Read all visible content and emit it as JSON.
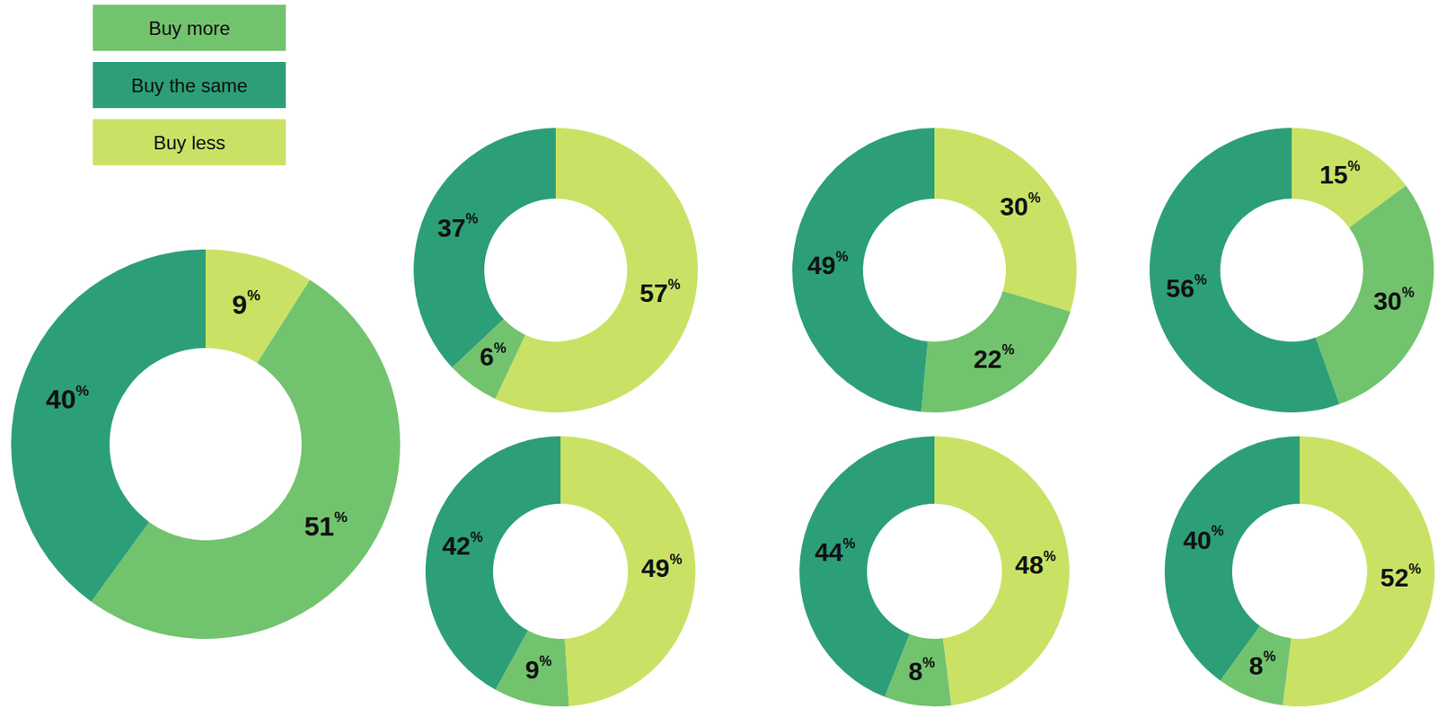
{
  "chart_data": [
    {
      "type": "pie",
      "categories": [
        "Buy less",
        "Buy more",
        "Buy the same"
      ],
      "values": [
        9,
        51,
        40
      ],
      "value_labels": [
        "9%",
        "51%",
        "40%"
      ],
      "colors": [
        "#c9e265",
        "#72c36e",
        "#2c9f78"
      ],
      "data_labels": true,
      "legend": "top-left"
    },
    {
      "type": "pie",
      "categories": [
        "Buy less",
        "Buy more",
        "Buy the same"
      ],
      "values": [
        57,
        6,
        37
      ],
      "value_labels": [
        "57%",
        "6%",
        "37%"
      ],
      "colors": [
        "#c9e265",
        "#72c36e",
        "#2c9f78"
      ],
      "data_labels": true
    },
    {
      "type": "pie",
      "categories": [
        "Buy less",
        "Buy more",
        "Buy the same"
      ],
      "values": [
        30,
        22,
        49
      ],
      "value_labels": [
        "30%",
        "22%",
        "49%"
      ],
      "colors": [
        "#c9e265",
        "#72c36e",
        "#2c9f78"
      ],
      "data_labels": true
    },
    {
      "type": "pie",
      "categories": [
        "Buy less",
        "Buy more",
        "Buy the same"
      ],
      "values": [
        15,
        30,
        56
      ],
      "value_labels": [
        "15%",
        "30%",
        "56%"
      ],
      "colors": [
        "#c9e265",
        "#72c36e",
        "#2c9f78"
      ],
      "data_labels": true
    },
    {
      "type": "pie",
      "categories": [
        "Buy less",
        "Buy more",
        "Buy the same"
      ],
      "values": [
        49,
        9,
        42
      ],
      "value_labels": [
        "49%",
        "9%",
        "42%"
      ],
      "colors": [
        "#c9e265",
        "#72c36e",
        "#2c9f78"
      ],
      "data_labels": true
    },
    {
      "type": "pie",
      "categories": [
        "Buy less",
        "Buy more",
        "Buy the same"
      ],
      "values": [
        48,
        8,
        44
      ],
      "value_labels": [
        "48%",
        "8%",
        "44%"
      ],
      "colors": [
        "#c9e265",
        "#72c36e",
        "#2c9f78"
      ],
      "data_labels": true
    },
    {
      "type": "pie",
      "categories": [
        "Buy less",
        "Buy more",
        "Buy the same"
      ],
      "values": [
        52,
        8,
        40
      ],
      "value_labels": [
        "52%",
        "8%",
        "40%"
      ],
      "colors": [
        "#c9e265",
        "#72c36e",
        "#2c9f78"
      ],
      "data_labels": true
    }
  ]
}
